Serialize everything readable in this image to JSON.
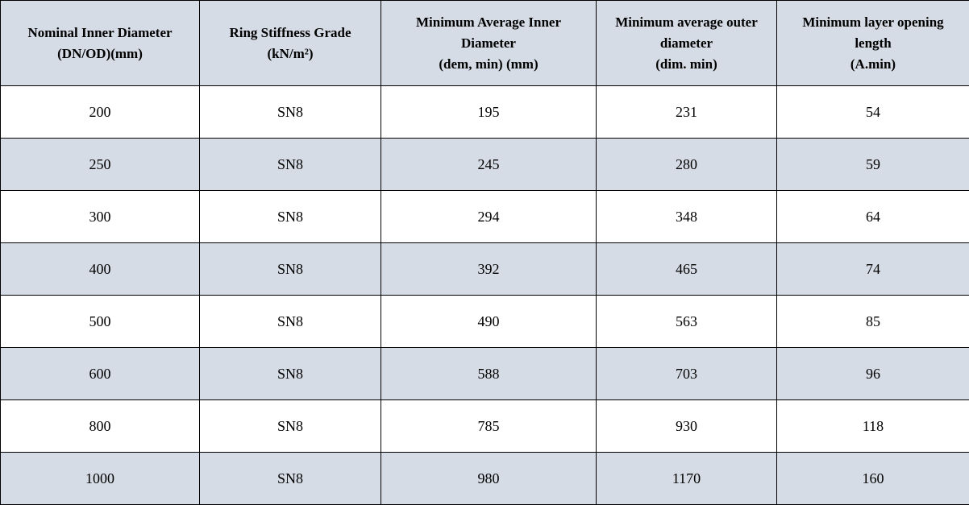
{
  "table": {
    "headers": [
      [
        "Nominal Inner Diameter",
        "(DN/OD)(mm)"
      ],
      [
        "Ring Stiffness Grade",
        "(kN/m²)"
      ],
      [
        "Minimum Average Inner",
        "Diameter",
        "(dem, min) (mm)"
      ],
      [
        "Minimum average outer",
        "diameter",
        "(dim. min)"
      ],
      [
        "Minimum layer opening",
        "length",
        "(A.min)"
      ]
    ],
    "rows": [
      [
        "200",
        "SN8",
        "195",
        "231",
        "54"
      ],
      [
        "250",
        "SN8",
        "245",
        "280",
        "59"
      ],
      [
        "300",
        "SN8",
        "294",
        "348",
        "64"
      ],
      [
        "400",
        "SN8",
        "392",
        "465",
        "74"
      ],
      [
        "500",
        "SN8",
        "490",
        "563",
        "85"
      ],
      [
        "600",
        "SN8",
        "588",
        "703",
        "96"
      ],
      [
        "800",
        "SN8",
        "785",
        "930",
        "118"
      ],
      [
        "1000",
        "SN8",
        "980",
        "1170",
        "160"
      ]
    ]
  },
  "colors": {
    "shaded": "#d6dce5",
    "plain": "#ffffff",
    "border": "#000000"
  }
}
